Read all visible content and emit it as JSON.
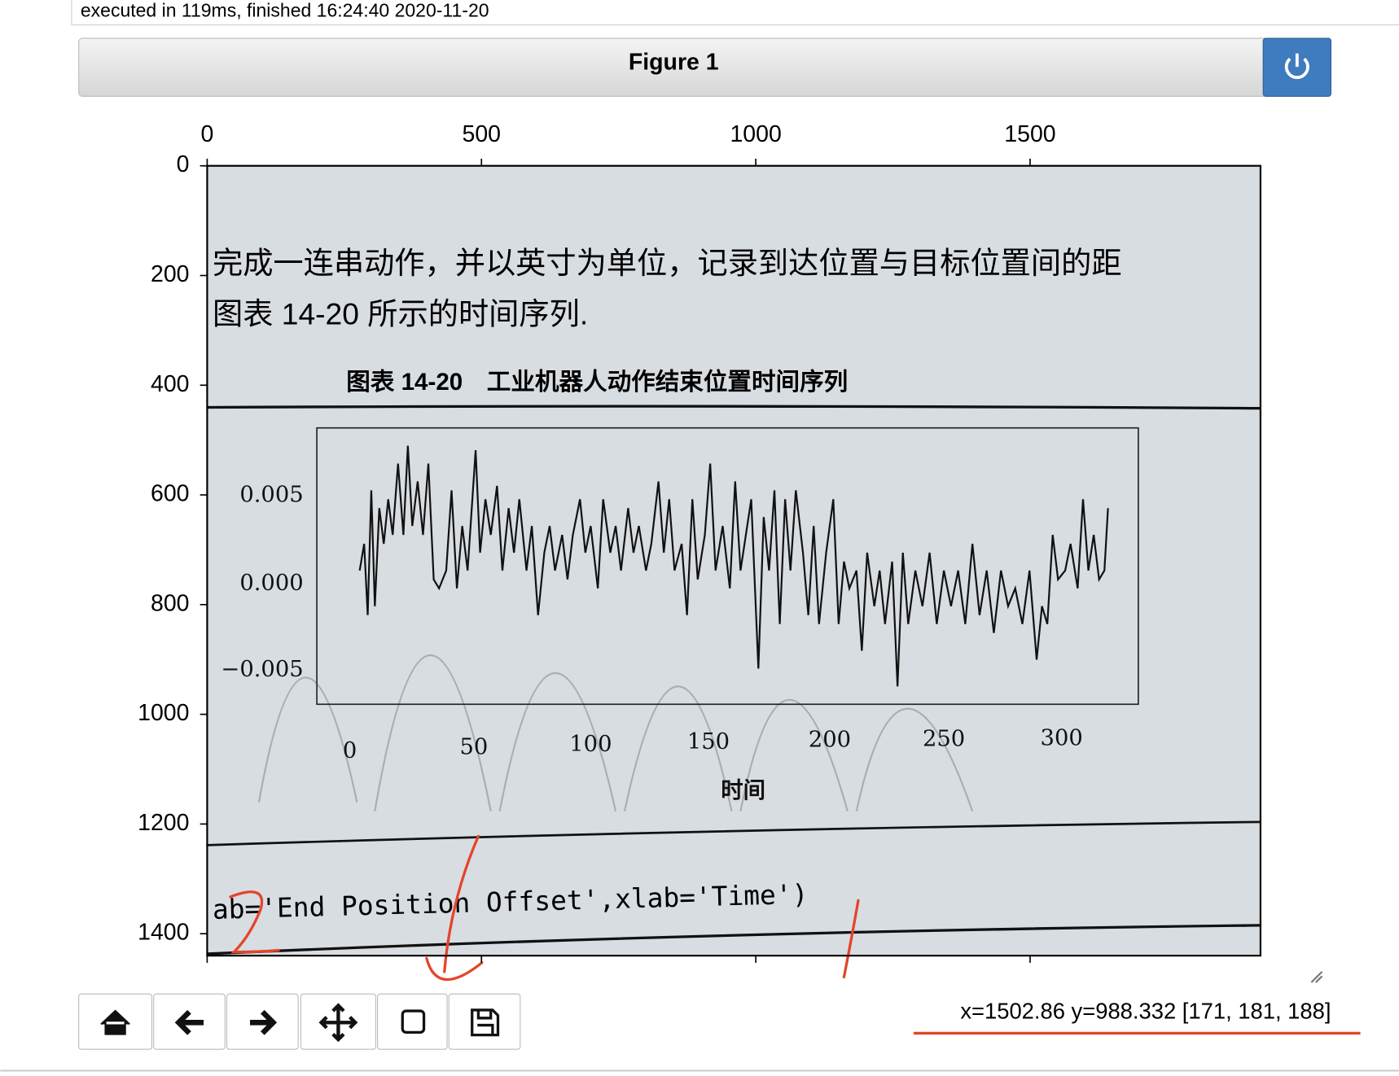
{
  "header": {
    "status": "executed in 119ms, finished 16:24:40 2020-11-20"
  },
  "figure": {
    "title": "Figure 1",
    "pointer_status": "x=1502.86 y=988.332 [171, 181, 188]"
  },
  "chart_data": {
    "type": "image",
    "xlim": [
      0,
      1920
    ],
    "ylim": [
      1440,
      0
    ],
    "xticks": [
      0,
      500,
      1000,
      1500
    ],
    "yticks": [
      0,
      200,
      400,
      600,
      800,
      1000,
      1200,
      1400
    ]
  },
  "image": {
    "lines": [
      "完成一连串动作，并以英寸为单位，记录到达位置与目标位置间的距",
      "图表 14-20 所示的时间序列.",
      "图表 14-20　工业机器人动作结束位置时间序列",
      "ab='End Position Offset',xlab='Time')"
    ],
    "inner_yticks": [
      "0.005",
      "0.000",
      "−0.005"
    ],
    "inner_xticks": [
      "0",
      "50",
      "100",
      "150",
      "200",
      "250",
      "300"
    ],
    "inner_xlabel": "时间"
  }
}
